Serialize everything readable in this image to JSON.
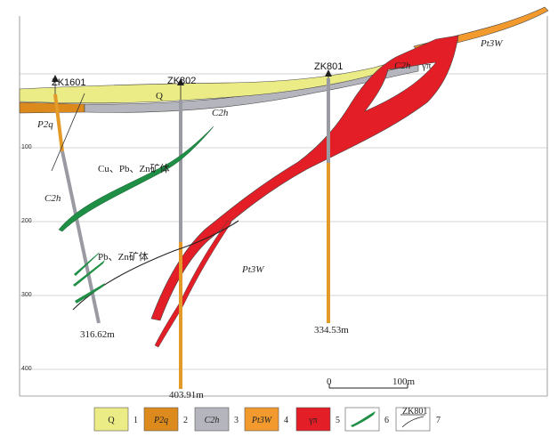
{
  "depth_ticks": [
    "100",
    "200",
    "300",
    "400"
  ],
  "holes": [
    {
      "id": "ZK1601",
      "depth": "316.62m"
    },
    {
      "id": "ZK802",
      "depth": "403.91m"
    },
    {
      "id": "ZK801",
      "depth": "334.53m"
    }
  ],
  "labels": {
    "q": "Q",
    "p2q": "P2q",
    "c2h_mid": "C2h",
    "c2h_left": "C2h",
    "c2h_top": "C2h",
    "pt3w_top": "Pt3W",
    "pt3w_main": "Pt3W",
    "ore1": "Cu、Pb、Zn矿体",
    "ore2": "Pb、Zn矿体",
    "pi_top": "γπ"
  },
  "scale": {
    "start": "0",
    "end": "100m"
  },
  "legend": [
    {
      "code": "Q",
      "num": "1",
      "color": "#ecec86"
    },
    {
      "code": "P2q",
      "num": "2",
      "color": "#dc8a1c"
    },
    {
      "code": "C2h",
      "num": "3",
      "color": "#b5b5bd"
    },
    {
      "code": "Pt3W",
      "num": "4",
      "color": "#f29a2e"
    },
    {
      "code": "γπ",
      "num": "5",
      "color": "#e41e26"
    },
    {
      "code": "",
      "num": "6",
      "color": "#1f8f45"
    },
    {
      "code": "ZK801",
      "num": "7",
      "color": "#ffffff"
    }
  ]
}
